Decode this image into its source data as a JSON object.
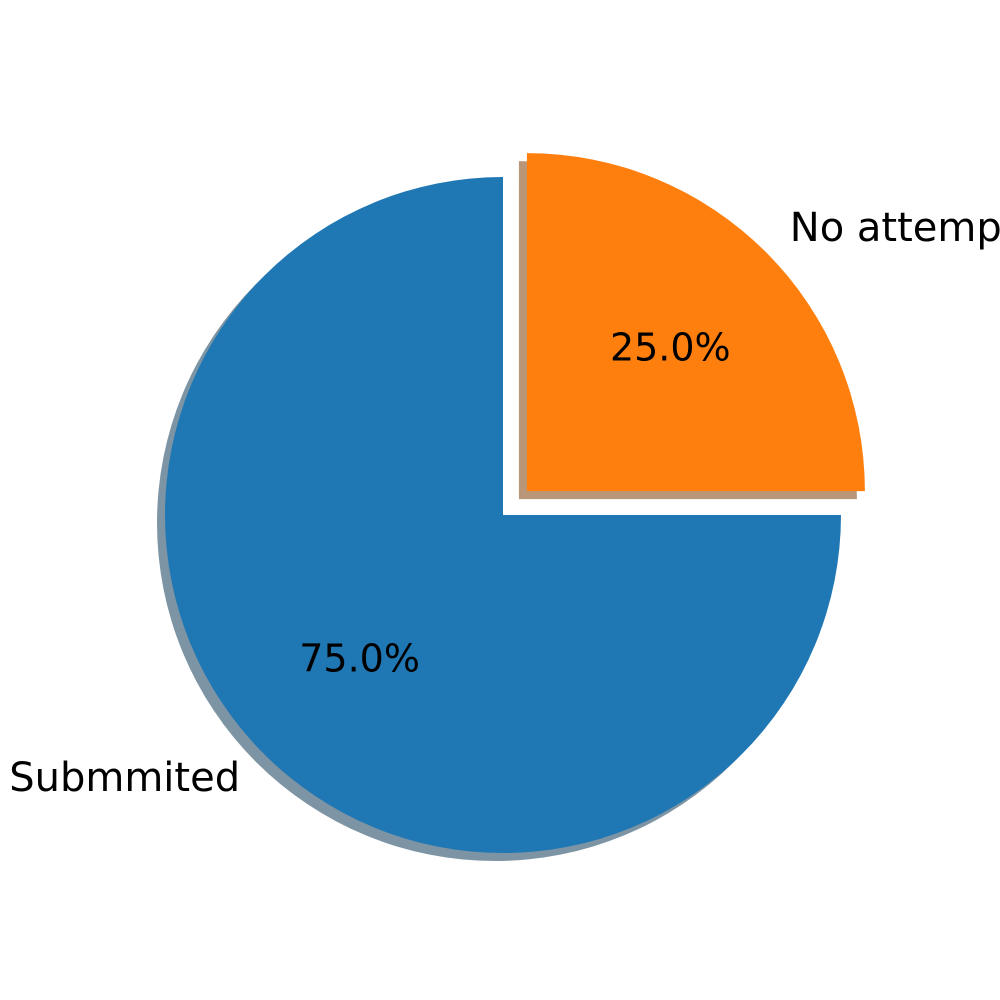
{
  "chart_data": {
    "type": "pie",
    "title": "",
    "start_angle": 90,
    "counterclock": true,
    "shadow": true,
    "slices": [
      {
        "label": "Submmited",
        "value": 75.0,
        "percent_label": "75.0%",
        "color": "#1f77b4",
        "explode": 0
      },
      {
        "label": "No attempt",
        "value": 25.0,
        "percent_label": "25.0%",
        "color": "#ff7f0e",
        "explode": 0.1
      }
    ]
  }
}
